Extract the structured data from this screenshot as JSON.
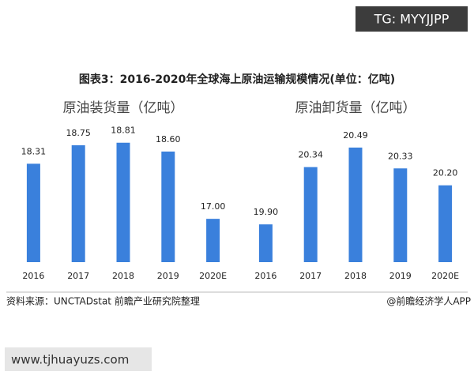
{
  "tag": "TG: MYYJJPP",
  "title": "图表3：2016-2020年全球海上原油运输规模情况(单位：亿吨)",
  "chart_data": [
    {
      "type": "bar",
      "title": "原油装货量（亿吨）",
      "categories": [
        "2016",
        "2017",
        "2018",
        "2019",
        "2020E"
      ],
      "values": [
        18.31,
        18.75,
        18.81,
        18.6,
        17.0
      ],
      "value_labels": [
        "18.31",
        "18.75",
        "18.81",
        "18.60",
        "17.00"
      ],
      "color": "#3a80dc",
      "ylim": [
        15.97,
        19.5
      ]
    },
    {
      "type": "bar",
      "title": "原油卸货量（亿吨）",
      "categories": [
        "2016",
        "2017",
        "2018",
        "2019",
        "2020E"
      ],
      "values": [
        19.9,
        20.34,
        20.49,
        20.33,
        20.2
      ],
      "value_labels": [
        "19.90",
        "20.34",
        "20.49",
        "20.33",
        "20.20"
      ],
      "color": "#3a80dc",
      "ylim": [
        19.61,
        20.75
      ]
    }
  ],
  "source": "资料来源：UNCTADstat 前瞻产业研究院整理",
  "credit": "@前瞻经济学人APP",
  "footer": "www.tjhuayuzs.com"
}
